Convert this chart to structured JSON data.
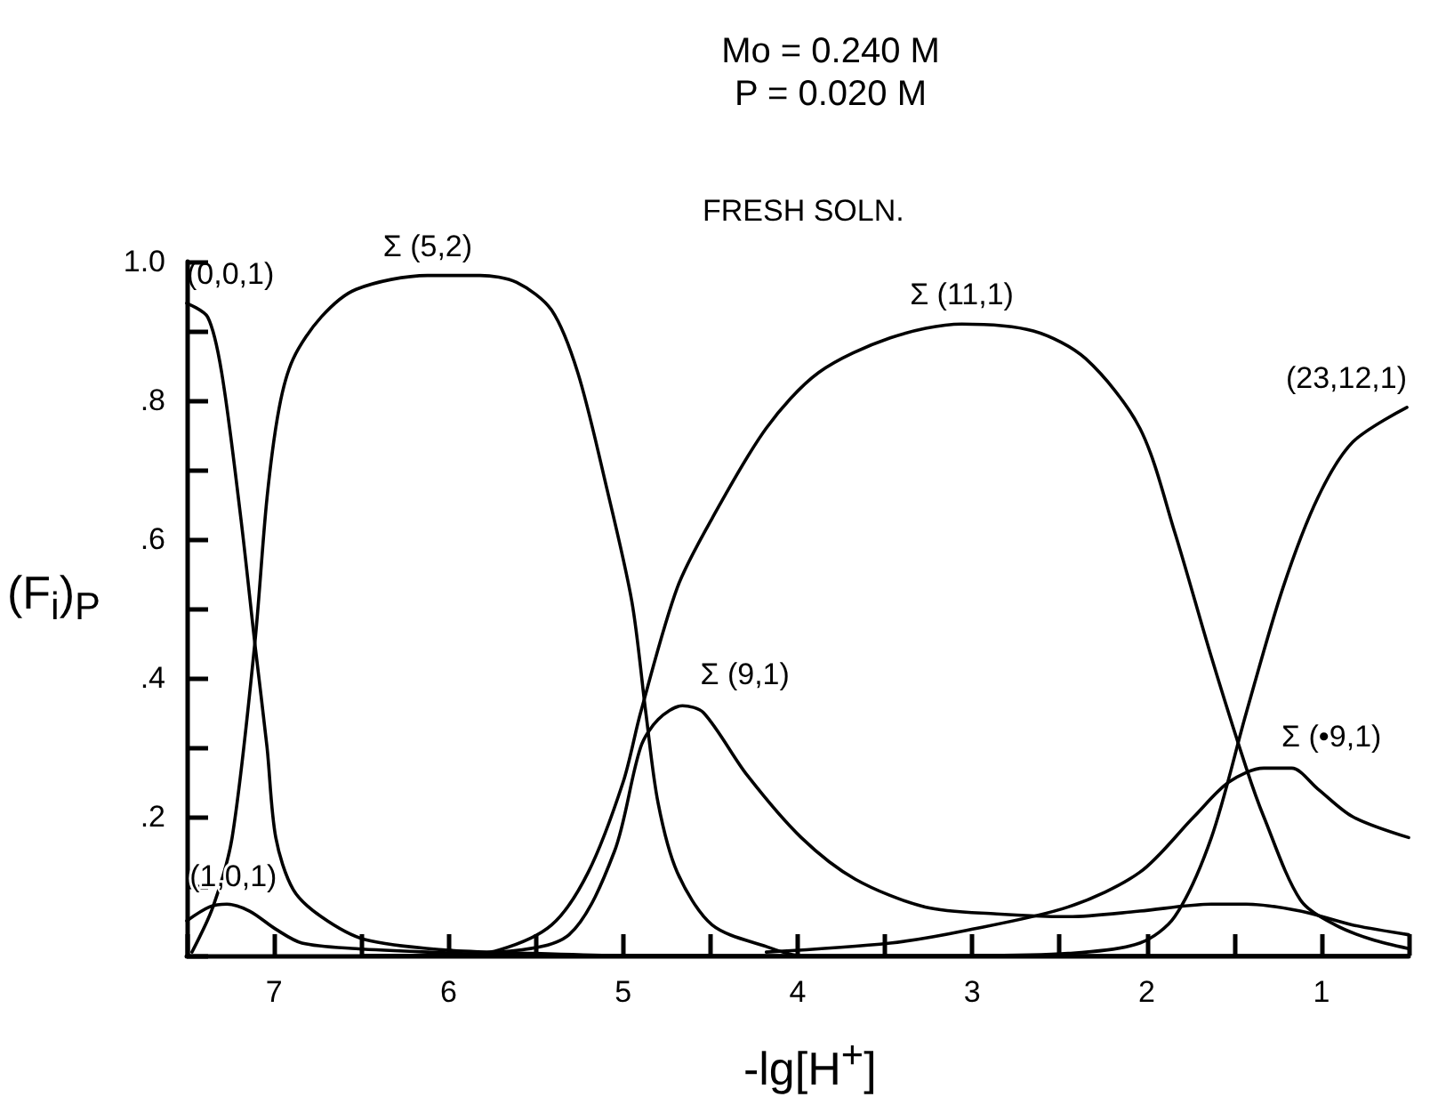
{
  "chart_data": {
    "type": "line",
    "title": "Mo = 0.240 M",
    "subtitle": "P = 0.020 M",
    "xlabel": "-lg[H$^{+}$]",
    "ylabel": "(F$_{i}$)$_{P}$",
    "xlim": [
      7.5,
      0.5
    ],
    "ylim": [
      0,
      1.0
    ],
    "xticks": [
      {
        "value": 7.5,
        "label": null
      },
      7,
      {
        "value": 6.5,
        "label": null
      },
      6,
      {
        "value": 5.5,
        "label": null
      },
      5,
      {
        "value": 4.5,
        "label": null
      },
      4,
      {
        "value": 3.5,
        "label": null
      },
      3,
      {
        "value": 2.5,
        "label": null
      },
      2,
      {
        "value": 1.5,
        "label": null
      },
      1,
      {
        "value": 0.5,
        "label": null
      }
    ],
    "yticks": [
      {
        "value": 0,
        "label": null
      },
      {
        "value": 0.1,
        "label": null
      },
      {
        "value": 0.2,
        "label": ".2"
      },
      {
        "value": 0.3,
        "label": null
      },
      {
        "value": 0.4,
        "label": ".4"
      },
      {
        "value": 0.5,
        "label": null
      },
      {
        "value": 0.6,
        "label": ".6"
      },
      {
        "value": 0.7,
        "label": null
      },
      {
        "value": 0.8,
        "label": ".8"
      },
      {
        "value": 0.9,
        "label": null
      },
      {
        "value": 1.0,
        "label": "1.0"
      }
    ],
    "grid": false,
    "marker": "none",
    "line_style": "solid",
    "series": [
      {
        "name": "(0,0,1)",
        "color": "#000000",
        "x": [
          7.5,
          7.38,
          7.3,
          7.19,
          7.11,
          7.04,
          6.99,
          6.89,
          6.73,
          6.48,
          6.02,
          5.5,
          5.0,
          4.5,
          4.0
        ],
        "values": [
          0.94,
          0.92,
          0.84,
          0.63,
          0.45,
          0.3,
          0.17,
          0.095,
          0.056,
          0.023,
          0.008,
          0.003,
          0,
          0,
          0
        ]
      },
      {
        "name": "Σ (5,2)",
        "color": "#000000",
        "x": [
          7.47,
          7.35,
          7.24,
          7.11,
          7.04,
          6.97,
          6.89,
          6.73,
          6.53,
          6.12,
          5.82,
          5.61,
          5.41,
          5.26,
          5.1,
          4.95,
          4.87,
          4.8,
          4.69,
          4.49,
          4.18,
          3.98,
          3.0,
          2.0,
          1.0,
          0.5
        ],
        "values": [
          0.005,
          0.07,
          0.17,
          0.45,
          0.66,
          0.79,
          0.86,
          0.92,
          0.96,
          0.98,
          0.98,
          0.97,
          0.93,
          0.84,
          0.68,
          0.51,
          0.35,
          0.22,
          0.12,
          0.044,
          0.013,
          0,
          0,
          0,
          0,
          0
        ]
      },
      {
        "name": "Σ (11,1)",
        "color": "#000000",
        "x": [
          6.5,
          6.0,
          5.71,
          5.41,
          5.2,
          5.0,
          4.9,
          4.69,
          4.49,
          4.18,
          3.88,
          3.47,
          3.06,
          2.65,
          2.35,
          2.04,
          1.84,
          1.63,
          1.43,
          1.33,
          1.12,
          0.92,
          0.71,
          0.5
        ],
        "values": [
          0,
          0,
          0.008,
          0.044,
          0.12,
          0.25,
          0.35,
          0.53,
          0.63,
          0.76,
          0.84,
          0.89,
          0.91,
          0.9,
          0.86,
          0.76,
          0.61,
          0.43,
          0.27,
          0.2,
          0.08,
          0.044,
          0.023,
          0.01
        ]
      },
      {
        "name": "Σ (9,1)",
        "color": "#000000",
        "x": [
          6.5,
          5.71,
          5.31,
          5.05,
          4.9,
          4.8,
          4.66,
          4.54,
          4.29,
          3.98,
          3.67,
          3.27,
          2.86,
          2.45,
          2.04,
          1.63,
          1.43,
          1.12,
          0.82,
          0.5
        ],
        "values": [
          0,
          0.005,
          0.03,
          0.15,
          0.3,
          0.34,
          0.36,
          0.35,
          0.26,
          0.17,
          0.11,
          0.07,
          0.06,
          0.056,
          0.064,
          0.074,
          0.074,
          0.064,
          0.044,
          0.03
        ]
      },
      {
        "name": "Σ (•9,1)",
        "color": "#000000",
        "x": [
          4.18,
          3.47,
          3.04,
          2.45,
          2.04,
          1.73,
          1.53,
          1.33,
          1.17,
          1.02,
          0.82,
          0.5
        ],
        "values": [
          0.005,
          0.018,
          0.036,
          0.07,
          0.12,
          0.2,
          0.25,
          0.27,
          0.27,
          0.24,
          0.2,
          0.17
        ]
      },
      {
        "name": "(23,12,1)",
        "color": "#000000",
        "x": [
          3.0,
          2.45,
          2.04,
          1.84,
          1.63,
          1.43,
          1.22,
          1.02,
          0.82,
          0.51
        ],
        "values": [
          0,
          0.003,
          0.018,
          0.056,
          0.17,
          0.35,
          0.53,
          0.66,
          0.74,
          0.79
        ]
      },
      {
        "name": "(1,0,1)",
        "color": "#000000",
        "x": [
          7.5,
          7.37,
          7.27,
          7.14,
          6.99,
          6.84,
          6.53,
          6.12,
          5.5,
          5.0,
          4.5
        ],
        "values": [
          0.05,
          0.07,
          0.074,
          0.064,
          0.038,
          0.018,
          0.01,
          0.005,
          0,
          0,
          0
        ]
      }
    ],
    "annotations": [
      "FRESH SOLN."
    ]
  }
}
